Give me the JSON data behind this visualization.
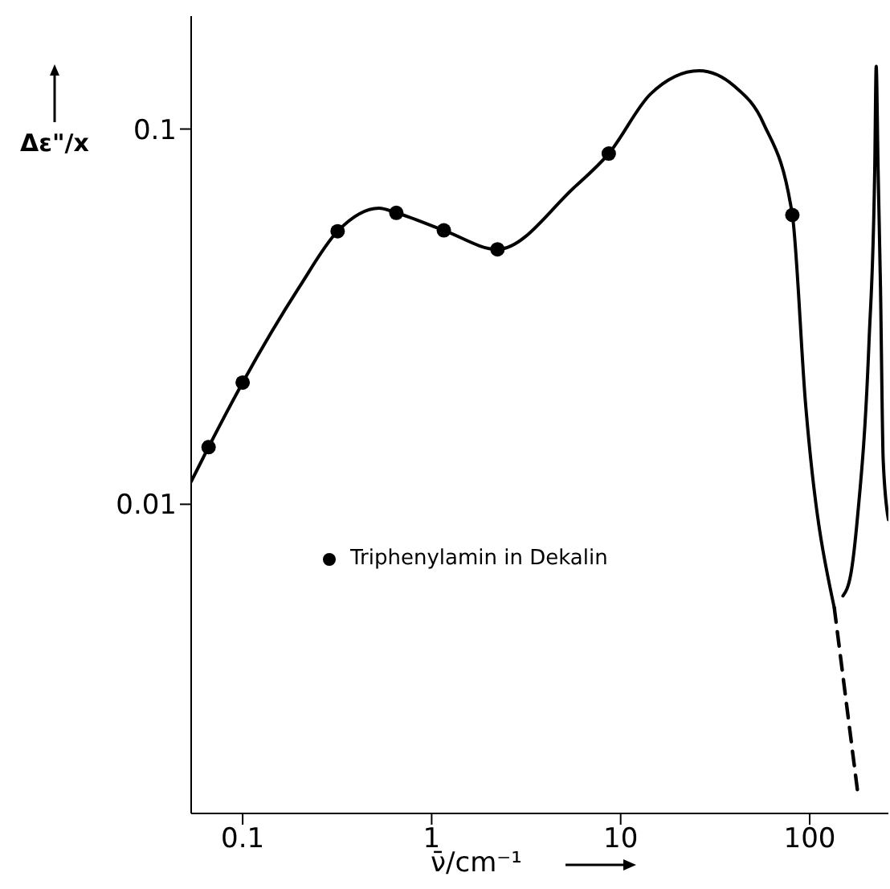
{
  "chart_data": {
    "type": "line",
    "xlabel": "ν̄/cm⁻¹",
    "ylabel": "Δε\"/x",
    "log": "xy",
    "xlim": [
      0.0534,
      261
    ],
    "xticks": [
      0.1,
      1,
      10,
      100
    ],
    "ylim": [
      0.0015,
      0.2
    ],
    "yticks": [
      0.01,
      0.1
    ],
    "grid": false,
    "legend": "left",
    "series": [
      {
        "color": "#000000",
        "line_style": "solid",
        "marker": "none",
        "x": [
          0.0534,
          0.066,
          0.1,
          0.2,
          0.318,
          0.526,
          0.65,
          1.16,
          2.23,
          5.66,
          8.65,
          14.4,
          26,
          40,
          57,
          81,
          95,
          135
        ],
        "values": [
          0.0115,
          0.0142,
          0.0211,
          0.038,
          0.0534,
          0.0615,
          0.0598,
          0.0537,
          0.0478,
          0.0698,
          0.086,
          0.124,
          0.143,
          0.13,
          0.1035,
          0.059,
          0.0187,
          0.0053
        ]
      },
      {
        "color": "#000000",
        "line_style": "dashed",
        "marker": "none",
        "x": [
          135,
          179
        ],
        "values": [
          0.0053,
          0.00173
        ]
      },
      {
        "color": "#000000",
        "line_style": "solid",
        "marker": "none",
        "x": [
          150,
          165,
          179,
          206,
          221,
          225,
          230,
          237,
          245,
          261
        ],
        "values": [
          0.0057,
          0.0065,
          0.0092,
          0.0269,
          0.078,
          0.147,
          0.08,
          0.038,
          0.0131,
          0.0091
        ]
      },
      {
        "type": "scatter",
        "name": "Triphenylamin in Dekalin",
        "color": "#000000",
        "marker": "circle",
        "x": [
          0.066,
          0.1,
          0.318,
          0.65,
          1.16,
          2.23,
          8.65,
          81
        ],
        "values": [
          0.0142,
          0.0211,
          0.0534,
          0.0598,
          0.0537,
          0.0478,
          0.086,
          0.059
        ]
      }
    ]
  }
}
